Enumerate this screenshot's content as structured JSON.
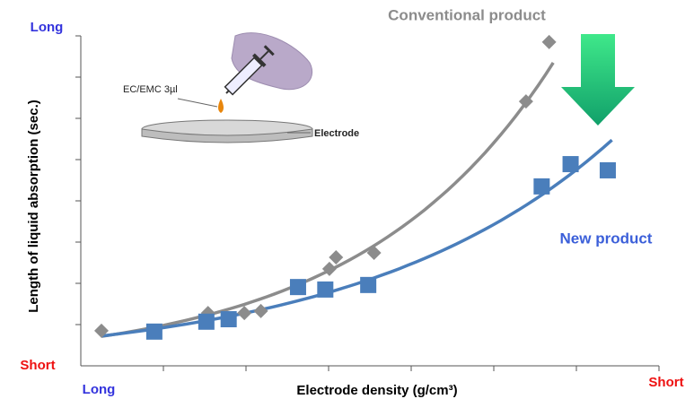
{
  "chart_data": {
    "type": "scatter",
    "x_label": "Electrode density (g/cm³)",
    "y_label": "Length of liquid absorption (sec.)",
    "x_start_label": "Long",
    "x_end_label": "Short",
    "y_top_label": "Long",
    "y_bottom_label": "Short",
    "long_color": "#3333dd",
    "short_color": "#ee1111",
    "xlim": [
      0,
      7
    ],
    "ylim": [
      0,
      8
    ],
    "xticks": [
      1,
      2,
      3,
      4,
      5,
      6,
      7
    ],
    "yticks": [
      1,
      2,
      3,
      4,
      5,
      6,
      7,
      8
    ],
    "series": [
      {
        "name": "Conventional product",
        "color": "#8c8c8c",
        "marker": "diamond",
        "x": [
          0.25,
          1.54,
          1.98,
          2.18,
          3.01,
          3.09,
          3.55,
          5.39,
          5.67
        ],
        "values": [
          0.85,
          1.28,
          1.28,
          1.33,
          2.35,
          2.63,
          2.74,
          6.41,
          7.85
        ]
      },
      {
        "name": "New product",
        "color": "#4a7ebb",
        "marker": "square",
        "x": [
          0.89,
          1.52,
          1.79,
          2.63,
          2.96,
          3.48,
          5.58,
          5.93,
          6.38
        ],
        "values": [
          0.83,
          1.07,
          1.13,
          1.91,
          1.85,
          1.96,
          4.35,
          4.89,
          4.74
        ]
      }
    ],
    "annotations": [
      "EC/EMC 3µl",
      "Electrode"
    ]
  }
}
